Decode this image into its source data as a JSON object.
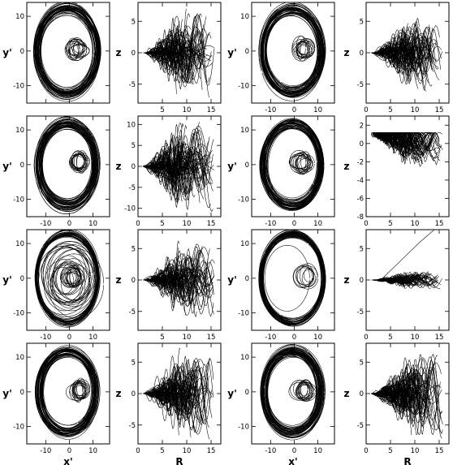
{
  "figure": {
    "columns": [
      {
        "kind": "xy",
        "xlabel": "x'",
        "ylabel": "y'"
      },
      {
        "kind": "rz",
        "xlabel": "R",
        "ylabel": "z"
      },
      {
        "kind": "xy",
        "xlabel": "x'",
        "ylabel": "y'"
      },
      {
        "kind": "rz",
        "xlabel": "R",
        "ylabel": "z"
      }
    ]
  },
  "chart_data": [
    {
      "type": "scatter",
      "panel": "row1-col1",
      "xlabel": "",
      "ylabel": "y'",
      "xlim": [
        -18,
        17
      ],
      "ylim": [
        -15,
        14
      ],
      "xticks": [
        "-10",
        "0",
        "10"
      ],
      "yticks": [
        "-10",
        "0",
        "10"
      ],
      "show_xticks": false,
      "show_yticks": true,
      "series": [
        {
          "shape": "orbit-ring",
          "ring_radius": [
            11.0,
            14.0
          ],
          "inner_loops_center": [
            3.0,
            0.5
          ]
        }
      ]
    },
    {
      "type": "scatter",
      "panel": "row1-col2",
      "xlabel": "",
      "ylabel": "z",
      "xlim": [
        0,
        17
      ],
      "ylim": [
        -8,
        8
      ],
      "xticks": [
        "5",
        "10",
        "15"
      ],
      "yticks": [
        "-5",
        "0",
        "5"
      ],
      "show_xticks": true,
      "show_yticks": true,
      "series": [
        {
          "shape": "fan",
          "z_max": 7
        }
      ]
    },
    {
      "type": "scatter",
      "panel": "row1-col3",
      "xlabel": "",
      "ylabel": "y'",
      "xlim": [
        -18,
        17
      ],
      "ylim": [
        -15,
        14
      ],
      "xticks": [
        "-10",
        "0",
        "10"
      ],
      "yticks": [
        "-10",
        "0",
        "10"
      ],
      "show_xticks": true,
      "show_yticks": true,
      "series": [
        {
          "shape": "orbit-ring",
          "ring_radius": [
            11.0,
            14.0
          ],
          "inner_loops_center": [
            4.0,
            0.5
          ]
        }
      ]
    },
    {
      "type": "scatter",
      "panel": "row1-col4",
      "xlabel": "",
      "ylabel": "z",
      "xlim": [
        0,
        17
      ],
      "ylim": [
        -8,
        8
      ],
      "xticks": [
        "0",
        "5",
        "10",
        "15"
      ],
      "yticks": [
        "-5",
        "0",
        "5"
      ],
      "show_xticks": true,
      "show_yticks": true,
      "series": [
        {
          "shape": "fan",
          "z_max": 6
        }
      ]
    },
    {
      "type": "scatter",
      "panel": "row2-col1",
      "xlabel": "",
      "ylabel": "y'",
      "xlim": [
        -18,
        17
      ],
      "ylim": [
        -15,
        14
      ],
      "xticks": [
        "-10",
        "0",
        "10"
      ],
      "yticks": [
        "-10",
        "0",
        "10"
      ],
      "show_xticks": true,
      "show_yticks": true,
      "series": [
        {
          "shape": "orbit-ring",
          "ring_radius": [
            10.5,
            13.5
          ],
          "inner_loops_center": [
            4.0,
            0.5
          ]
        }
      ]
    },
    {
      "type": "scatter",
      "panel": "row2-col2",
      "xlabel": "",
      "ylabel": "z",
      "xlim": [
        0,
        17
      ],
      "ylim": [
        -12,
        12
      ],
      "xticks": [
        "0",
        "5",
        "10",
        "15"
      ],
      "yticks": [
        "-10",
        "-5",
        "0",
        "5",
        "10"
      ],
      "show_xticks": true,
      "show_yticks": true,
      "series": [
        {
          "shape": "fan",
          "z_max": 11
        }
      ]
    },
    {
      "type": "scatter",
      "panel": "row2-col3",
      "xlabel": "",
      "ylabel": "y'",
      "xlim": [
        -18,
        17
      ],
      "ylim": [
        -15,
        14
      ],
      "xticks": [
        "-10",
        "0",
        "10"
      ],
      "yticks": [
        "-10",
        "0",
        "10"
      ],
      "show_xticks": true,
      "show_yticks": true,
      "series": [
        {
          "shape": "orbit-ring",
          "ring_radius": [
            10.5,
            13.5
          ],
          "inner_loops_center": [
            3.5,
            0.5
          ]
        }
      ]
    },
    {
      "type": "scatter",
      "panel": "row2-col4",
      "xlabel": "",
      "ylabel": "z",
      "xlim": [
        0,
        17
      ],
      "ylim": [
        -8,
        3
      ],
      "xticks": [
        "0",
        "5",
        "10",
        "15"
      ],
      "yticks": [
        "-8",
        "-6",
        "-4",
        "-2",
        "0",
        "2"
      ],
      "show_xticks": true,
      "show_yticks": true,
      "series": [
        {
          "shape": "fan-down",
          "z_max": 2,
          "z_min": -8
        }
      ]
    },
    {
      "type": "scatter",
      "panel": "row3-col1",
      "xlabel": "",
      "ylabel": "y'",
      "xlim": [
        -18,
        17
      ],
      "ylim": [
        -15,
        14
      ],
      "xticks": [
        "-10",
        "0",
        "10"
      ],
      "yticks": [
        "-10",
        "0",
        "10"
      ],
      "show_xticks": true,
      "show_yticks": true,
      "series": [
        {
          "shape": "chaotic-loops",
          "ring_radius": [
            12.5,
            13.5
          ],
          "inner_loops_center": [
            1.0,
            0.5
          ]
        }
      ]
    },
    {
      "type": "scatter",
      "panel": "row3-col2",
      "xlabel": "",
      "ylabel": "z",
      "xlim": [
        0,
        17
      ],
      "ylim": [
        -8,
        8
      ],
      "xticks": [
        "5",
        "10",
        "15"
      ],
      "yticks": [
        "-5",
        "0",
        "5"
      ],
      "show_xticks": true,
      "show_yticks": true,
      "series": [
        {
          "shape": "fan",
          "z_max": 6
        }
      ]
    },
    {
      "type": "scatter",
      "panel": "row3-col3",
      "xlabel": "",
      "ylabel": "y'",
      "xlim": [
        -18,
        17
      ],
      "ylim": [
        -15,
        14
      ],
      "xticks": [
        "-10",
        "0",
        "10"
      ],
      "yticks": [
        "-10",
        "0",
        "10"
      ],
      "show_xticks": true,
      "show_yticks": true,
      "series": [
        {
          "shape": "thin-ring",
          "ring_radius": [
            12.5,
            13.8
          ],
          "inner_loops_center": [
            5.0,
            0.5
          ]
        }
      ]
    },
    {
      "type": "scatter",
      "panel": "row3-col4",
      "xlabel": "",
      "ylabel": "z",
      "xlim": [
        0,
        17
      ],
      "ylim": [
        -8,
        8
      ],
      "xticks": [
        "0",
        "5",
        "10",
        "15"
      ],
      "yticks": [
        "-5",
        "0",
        "5"
      ],
      "show_xticks": true,
      "show_yticks": true,
      "series": [
        {
          "shape": "flat-band",
          "z_max": 2
        }
      ]
    },
    {
      "type": "scatter",
      "panel": "row4-col1",
      "xlabel": "x'",
      "ylabel": "y'",
      "xlim": [
        -18,
        17
      ],
      "ylim": [
        -15,
        14
      ],
      "xticks": [
        "-10",
        "0",
        "10"
      ],
      "yticks": [
        "-10",
        "0",
        "10"
      ],
      "show_xticks": true,
      "show_yticks": true,
      "series": [
        {
          "shape": "orbit-ring",
          "ring_radius": [
            10.5,
            13.5
          ],
          "inner_loops_center": [
            4.0,
            0.5
          ]
        }
      ]
    },
    {
      "type": "scatter",
      "panel": "row4-col2",
      "xlabel": "R",
      "ylabel": "z",
      "xlim": [
        0,
        17
      ],
      "ylim": [
        -8,
        8
      ],
      "xticks": [
        "0",
        "5",
        "10",
        "15"
      ],
      "yticks": [
        "-5",
        "0",
        "5"
      ],
      "show_xticks": true,
      "show_yticks": true,
      "series": [
        {
          "shape": "fan",
          "z_max": 7
        }
      ]
    },
    {
      "type": "scatter",
      "panel": "row4-col3",
      "xlabel": "x'",
      "ylabel": "y'",
      "xlim": [
        -18,
        17
      ],
      "ylim": [
        -15,
        14
      ],
      "xticks": [
        "-10",
        "0",
        "10"
      ],
      "yticks": [
        "-10",
        "0",
        "10"
      ],
      "show_xticks": true,
      "show_yticks": true,
      "series": [
        {
          "shape": "orbit-ring",
          "ring_radius": [
            10.5,
            13.5
          ],
          "inner_loops_center": [
            3.5,
            0.5
          ]
        }
      ]
    },
    {
      "type": "scatter",
      "panel": "row4-col4",
      "xlabel": "R",
      "ylabel": "z",
      "xlim": [
        0,
        17
      ],
      "ylim": [
        -8,
        8
      ],
      "xticks": [
        "0",
        "5",
        "10",
        "15"
      ],
      "yticks": [
        "-5",
        "0",
        "5"
      ],
      "show_xticks": true,
      "show_yticks": true,
      "series": [
        {
          "shape": "fan",
          "z_max": 7
        }
      ]
    }
  ]
}
